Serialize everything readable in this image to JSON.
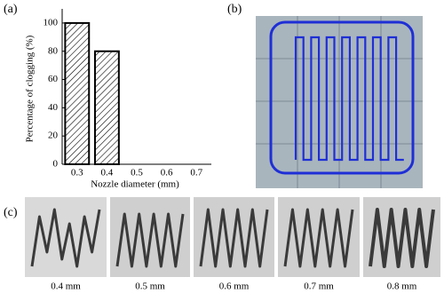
{
  "chart_data": {
    "type": "bar",
    "xlabel": "Nozzle diameter (mm)",
    "ylabel": "Percentage of clogging (%)",
    "categories": [
      "0.3",
      "0.4",
      "0.5",
      "0.6",
      "0.7"
    ],
    "values": [
      100,
      80,
      0,
      0,
      0
    ],
    "color": "#000000",
    "ylim": [
      0,
      110
    ],
    "yticks": [
      0,
      20,
      40,
      60,
      80,
      100
    ]
  },
  "panel_labels": [
    "(a)",
    "(b)",
    "(c)"
  ],
  "photos": {
    "captions": [
      "0.4 mm",
      "0.5 mm",
      "0.6 mm",
      "0.7 mm",
      "0.8 mm"
    ]
  }
}
